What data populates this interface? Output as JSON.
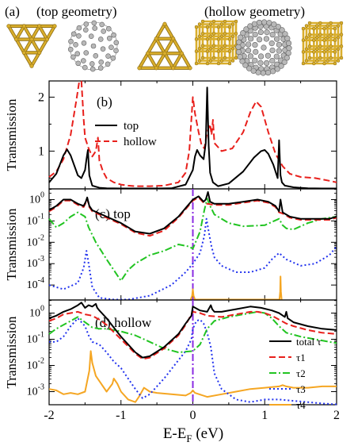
{
  "header": {
    "panel_letter": "(a)",
    "left_caption": "(top geometry)",
    "right_caption": "(hollow geometry)"
  },
  "colors": {
    "gold": "#d9ae2c",
    "gold_dark": "#8a6a10",
    "carbon": "#b8b8b8",
    "carbon_dark": "#606060",
    "top": "#000000",
    "hollow": "#e8201c",
    "tau1": "#e8201c",
    "tau2": "#22c422",
    "tau3": "#2233ee",
    "tau4": "#f5a623",
    "fermi": "#8a2be2"
  },
  "x_axis": {
    "label_main": "E-E",
    "label_sub": "F",
    "label_unit": " (eV)",
    "ticks": [
      "-2",
      "-1",
      "0",
      "1",
      "2"
    ],
    "range": [
      -2,
      2
    ]
  },
  "chart_data": [
    {
      "type": "line",
      "panel": "(b)",
      "ylabel": "Transmission",
      "xlim": [
        -2,
        2
      ],
      "ylim": [
        0.3,
        2.3
      ],
      "yticks": [
        "1",
        "2"
      ],
      "legend_position": "left-middle",
      "series": [
        {
          "name": "top",
          "style": "solid",
          "x": [
            -2.0,
            -1.9,
            -1.8,
            -1.75,
            -1.7,
            -1.6,
            -1.55,
            -1.5,
            -1.48,
            -1.46,
            -1.44,
            -1.4,
            -1.3,
            -1.2,
            -1.0,
            -0.8,
            -0.5,
            -0.3,
            -0.1,
            0.0,
            0.03,
            0.06,
            0.1,
            0.15,
            0.18,
            0.2,
            0.22,
            0.24,
            0.28,
            0.35,
            0.5,
            0.7,
            0.85,
            0.95,
            1.0,
            1.05,
            1.12,
            1.18,
            1.2,
            1.22,
            1.24,
            1.28,
            1.4,
            1.6,
            1.8,
            2.0
          ],
          "y": [
            0.42,
            0.58,
            0.92,
            1.03,
            0.92,
            0.55,
            0.5,
            0.65,
            0.85,
            1.02,
            0.55,
            0.36,
            0.32,
            0.31,
            0.3,
            0.3,
            0.3,
            0.31,
            0.38,
            0.65,
            0.9,
            1.02,
            0.92,
            0.85,
            1.15,
            2.18,
            1.1,
            0.6,
            0.42,
            0.35,
            0.4,
            0.62,
            0.88,
            1.0,
            1.02,
            0.95,
            0.75,
            0.5,
            1.2,
            0.55,
            0.42,
            0.36,
            0.33,
            0.31,
            0.3,
            0.3
          ]
        },
        {
          "name": "hollow",
          "style": "dashed",
          "x": [
            -2.0,
            -1.9,
            -1.8,
            -1.7,
            -1.62,
            -1.58,
            -1.55,
            -1.52,
            -1.5,
            -1.45,
            -1.4,
            -1.35,
            -1.32,
            -1.3,
            -1.25,
            -1.2,
            -1.1,
            -1.0,
            -0.9,
            -0.8,
            -0.6,
            -0.4,
            -0.2,
            -0.1,
            -0.05,
            0.0,
            0.03,
            0.08,
            0.12,
            0.16,
            0.2,
            0.24,
            0.26,
            0.28,
            0.3,
            0.4,
            0.55,
            0.7,
            0.8,
            0.88,
            0.95,
            1.05,
            1.15,
            1.25,
            1.35,
            1.5,
            1.7,
            1.9,
            2.0
          ],
          "y": [
            0.52,
            0.62,
            0.85,
            1.3,
            1.95,
            2.3,
            2.3,
            1.6,
            1.25,
            1.05,
            0.9,
            1.0,
            1.25,
            0.82,
            0.62,
            0.5,
            0.42,
            0.38,
            0.36,
            0.35,
            0.35,
            0.36,
            0.42,
            0.6,
            1.0,
            2.0,
            1.7,
            1.35,
            1.12,
            1.05,
            1.35,
            1.5,
            1.3,
            1.58,
            1.15,
            1.0,
            1.05,
            1.35,
            1.72,
            1.92,
            1.82,
            1.35,
            0.95,
            0.72,
            0.58,
            0.52,
            0.5,
            0.45,
            0.42
          ]
        }
      ]
    },
    {
      "type": "line",
      "panel": "(c) top",
      "ylabel": "Transmission",
      "yscale": "log",
      "xlim": [
        -2,
        2
      ],
      "ylim_exp": [
        -4.7,
        0.5
      ],
      "ytick_exponents": [
        0,
        -1,
        -2,
        -3,
        -4
      ],
      "fermi_line": 0,
      "series": [
        {
          "name": "total τ",
          "style": "solid",
          "x": [
            -2.0,
            -1.9,
            -1.8,
            -1.7,
            -1.6,
            -1.52,
            -1.49,
            -1.47,
            -1.44,
            -1.4,
            -1.2,
            -1.0,
            -0.8,
            -0.6,
            -0.4,
            -0.2,
            -0.1,
            0.0,
            0.08,
            0.15,
            0.18,
            0.21,
            0.24,
            0.3,
            0.5,
            0.7,
            0.9,
            1.05,
            1.15,
            1.2,
            1.22,
            1.25,
            1.35,
            1.5,
            1.7,
            1.9,
            2.0
          ],
          "y_log10": [
            -0.5,
            -0.3,
            0.0,
            0.0,
            -0.2,
            -0.3,
            -0.1,
            0.1,
            -0.3,
            -0.5,
            -0.8,
            -1.1,
            -1.5,
            -1.6,
            -1.35,
            -0.8,
            -0.4,
            0.0,
            0.15,
            -0.1,
            0.0,
            0.35,
            -0.1,
            -0.2,
            -0.2,
            -0.1,
            0.0,
            -0.1,
            -0.3,
            -0.55,
            0.0,
            -0.6,
            -0.8,
            -0.9,
            -0.9,
            -0.9,
            -0.8
          ]
        },
        {
          "name": "τ1",
          "style": "dashed",
          "x": [
            -2.0,
            -1.9,
            -1.8,
            -1.7,
            -1.6,
            -1.52,
            -1.49,
            -1.47,
            -1.44,
            -1.4,
            -1.2,
            -1.0,
            -0.8,
            -0.6,
            -0.4,
            -0.2,
            -0.1,
            0.0,
            0.08,
            0.15,
            0.2,
            0.3,
            0.5,
            0.7,
            0.9,
            1.05,
            1.15,
            1.2,
            1.25,
            1.35,
            1.5,
            1.7,
            1.9,
            2.0
          ],
          "y_log10": [
            -0.55,
            -0.35,
            -0.05,
            -0.05,
            -0.25,
            -0.35,
            -0.15,
            0.05,
            -0.35,
            -0.55,
            -0.85,
            -1.15,
            -1.55,
            -1.7,
            -1.45,
            -0.85,
            -0.45,
            -0.05,
            0.1,
            -0.15,
            -0.2,
            -0.25,
            -0.25,
            -0.15,
            -0.05,
            -0.15,
            -0.35,
            -0.6,
            -0.65,
            -0.85,
            -0.95,
            -0.95,
            -0.95,
            -0.85
          ]
        },
        {
          "name": "τ2",
          "style": "dashdot",
          "x": [
            -2.0,
            -1.9,
            -1.8,
            -1.7,
            -1.6,
            -1.5,
            -1.45,
            -1.35,
            -1.2,
            -1.1,
            -1.0,
            -0.9,
            -0.8,
            -0.6,
            -0.4,
            -0.2,
            -0.05,
            0.0,
            0.1,
            0.16,
            0.2,
            0.24,
            0.3,
            0.5,
            0.7,
            1.0,
            1.1,
            1.2,
            1.25,
            1.3,
            1.4,
            1.6,
            1.8,
            2.0
          ],
          "y_log10": [
            -0.9,
            -1.3,
            -1.1,
            -0.8,
            -0.6,
            -0.8,
            -1.3,
            -2.0,
            -2.8,
            -3.3,
            -3.8,
            -3.3,
            -3.0,
            -2.6,
            -2.4,
            -2.1,
            -2.2,
            -2.3,
            -1.5,
            -0.5,
            0.05,
            -0.3,
            -0.7,
            -1.1,
            -1.25,
            -1.2,
            -1.05,
            -0.9,
            -1.2,
            -1.35,
            -1.4,
            -1.1,
            -0.9,
            -0.8
          ]
        },
        {
          "name": "τ3",
          "style": "dotted",
          "x": [
            -2.0,
            -1.8,
            -1.6,
            -1.52,
            -1.48,
            -1.44,
            -1.4,
            -1.3,
            -1.1,
            -0.9,
            -0.6,
            -0.3,
            -0.1,
            0.0,
            0.1,
            0.16,
            0.19,
            0.22,
            0.26,
            0.3,
            0.4,
            0.6,
            0.8,
            1.0,
            1.1,
            1.2,
            1.3,
            1.5,
            1.7,
            1.9,
            2.0
          ],
          "y_log10": [
            -4.0,
            -4.2,
            -3.9,
            -3.2,
            -2.4,
            -3.2,
            -4.1,
            -4.6,
            -4.8,
            -4.8,
            -4.5,
            -4.0,
            -3.4,
            -3.0,
            -2.5,
            -1.7,
            -0.9,
            -1.5,
            -2.2,
            -2.7,
            -3.1,
            -3.4,
            -3.4,
            -3.2,
            -2.8,
            -2.5,
            -2.8,
            -3.1,
            -3.0,
            -2.6,
            -2.2
          ]
        },
        {
          "name": "τ4",
          "style": "solid",
          "x": [
            -0.03,
            -0.01,
            0.0,
            0.01,
            0.03,
            1.205,
            1.215,
            1.22,
            1.225,
            1.235
          ],
          "y_log10": [
            -4.7,
            -4.5,
            -4.2,
            -4.5,
            -4.7,
            -4.7,
            -4.3,
            -3.6,
            -4.3,
            -4.7
          ]
        }
      ]
    },
    {
      "type": "line",
      "panel": "(d) hollow",
      "ylabel": "Transmission",
      "yscale": "log",
      "xlim": [
        -2,
        2
      ],
      "ylim_exp": [
        -3.5,
        0.5
      ],
      "ytick_exponents": [
        0,
        -1,
        -2,
        -3
      ],
      "fermi_line": 0,
      "legend_position": "right-middle",
      "series": [
        {
          "name": "total τ",
          "style": "solid",
          "x": [
            -2.0,
            -1.9,
            -1.8,
            -1.7,
            -1.6,
            -1.55,
            -1.5,
            -1.45,
            -1.4,
            -1.35,
            -1.33,
            -1.3,
            -1.2,
            -1.0,
            -0.8,
            -0.7,
            -0.6,
            -0.4,
            -0.2,
            -0.1,
            -0.02,
            0.0,
            0.1,
            0.2,
            0.25,
            0.27,
            0.3,
            0.4,
            0.6,
            0.8,
            0.95,
            1.1,
            1.2,
            1.28,
            1.3,
            1.32,
            1.4,
            1.6,
            1.8,
            2.0
          ],
          "y_log10": [
            -0.2,
            -0.1,
            0.05,
            0.15,
            0.3,
            0.4,
            0.2,
            0.3,
            0.25,
            0.35,
            0.2,
            0.1,
            -0.2,
            -0.9,
            -1.5,
            -1.7,
            -1.65,
            -1.3,
            -0.8,
            -0.4,
            -0.1,
            0.25,
            0.1,
            0.05,
            0.3,
            0.15,
            0.05,
            0.05,
            0.15,
            0.25,
            0.2,
            0.1,
            0.0,
            -0.15,
            0.05,
            -0.2,
            -0.35,
            -0.5,
            -0.6,
            -0.65
          ]
        },
        {
          "name": "τ1",
          "style": "dashed",
          "x": [
            -2.0,
            -1.9,
            -1.8,
            -1.7,
            -1.6,
            -1.5,
            -1.4,
            -1.3,
            -1.2,
            -1.0,
            -0.8,
            -0.7,
            -0.6,
            -0.4,
            -0.2,
            -0.1,
            0.0,
            0.1,
            0.2,
            0.4,
            0.6,
            0.8,
            0.9,
            1.0,
            1.1,
            1.2,
            1.3,
            1.4,
            1.6,
            1.8,
            2.0
          ],
          "y_log10": [
            -0.3,
            -0.2,
            -0.05,
            0.0,
            0.05,
            -0.05,
            -0.1,
            -0.25,
            -0.45,
            -1.0,
            -1.55,
            -1.75,
            -1.7,
            -1.35,
            -0.85,
            -0.45,
            0.05,
            0.0,
            -0.1,
            -0.15,
            -0.05,
            0.05,
            0.05,
            0.0,
            -0.1,
            -0.25,
            -0.4,
            -0.5,
            -0.65,
            -0.75,
            -0.8
          ]
        },
        {
          "name": "τ2",
          "style": "dashdot",
          "x": [
            -2.0,
            -1.9,
            -1.8,
            -1.7,
            -1.6,
            -1.5,
            -1.4,
            -1.3,
            -1.2,
            -1.0,
            -0.8,
            -0.6,
            -0.4,
            -0.2,
            0.0,
            0.1,
            0.2,
            0.3,
            0.5,
            0.7,
            0.9,
            1.0,
            1.1,
            1.2,
            1.3,
            1.5,
            1.7,
            1.9,
            2.0
          ],
          "y_log10": [
            -0.8,
            -0.6,
            -0.45,
            -0.3,
            -0.15,
            -0.35,
            -0.55,
            -0.6,
            -0.6,
            -0.7,
            -0.85,
            -1.1,
            -1.35,
            -1.5,
            -1.45,
            -1.2,
            -0.6,
            -0.3,
            -0.15,
            -0.05,
            0.05,
            0.0,
            -0.2,
            -0.5,
            -0.75,
            -0.9,
            -1.0,
            -1.1,
            -1.15
          ]
        },
        {
          "name": "τ3",
          "style": "dotted",
          "x": [
            -2.0,
            -1.9,
            -1.8,
            -1.7,
            -1.6,
            -1.5,
            -1.45,
            -1.4,
            -1.3,
            -1.2,
            -1.1,
            -1.0,
            -0.9,
            -0.8,
            -0.7,
            -0.6,
            -0.5,
            -0.4,
            -0.3,
            -0.2,
            -0.1,
            -0.02,
            0.0,
            0.05,
            0.1,
            0.15,
            0.2,
            0.25,
            0.3,
            0.4,
            0.6,
            0.8,
            1.0,
            1.2,
            1.4,
            1.6,
            1.8,
            2.0
          ],
          "y_log10": [
            -1.1,
            -1.1,
            -0.9,
            -0.5,
            -0.2,
            -0.5,
            -0.85,
            -1.1,
            -1.2,
            -1.5,
            -1.85,
            -2.1,
            -2.5,
            -2.9,
            -3.25,
            -3.1,
            -2.8,
            -2.5,
            -2.15,
            -1.8,
            -1.45,
            -1.0,
            -0.6,
            -0.3,
            -0.25,
            -0.4,
            -0.75,
            -1.3,
            -2.3,
            -2.9,
            -3.3,
            -3.4,
            -3.3,
            -3.3,
            -3.35,
            -3.4,
            -3.45,
            -3.5
          ]
        },
        {
          "name": "τ4",
          "style": "solid",
          "x": [
            -2.0,
            -1.9,
            -1.8,
            -1.7,
            -1.6,
            -1.5,
            -1.44,
            -1.42,
            -1.4,
            -1.35,
            -1.2,
            -1.12,
            -1.1,
            -1.05,
            -1.0,
            -0.9,
            -0.8,
            -0.75,
            -0.7,
            -0.68,
            -0.6,
            -0.5,
            -0.3,
            -0.1,
            -0.03,
            0.0,
            0.03,
            0.2,
            0.4,
            0.6,
            0.8,
            1.0,
            1.2,
            1.25,
            1.3,
            1.4,
            1.6,
            1.8,
            2.0
          ],
          "y_log10": [
            -2.9,
            -2.95,
            -3.1,
            -3.05,
            -3.1,
            -3.0,
            -2.2,
            -1.45,
            -1.9,
            -2.4,
            -3.0,
            -2.7,
            -2.5,
            -2.7,
            -3.0,
            -3.3,
            -3.4,
            -3.2,
            -2.95,
            -2.85,
            -3.0,
            -3.05,
            -3.1,
            -3.15,
            -3.05,
            -2.95,
            -3.05,
            -3.2,
            -3.1,
            -3.0,
            -2.9,
            -2.85,
            -2.8,
            -2.75,
            -2.8,
            -2.85,
            -2.85,
            -2.8,
            -2.8
          ]
        }
      ]
    }
  ]
}
